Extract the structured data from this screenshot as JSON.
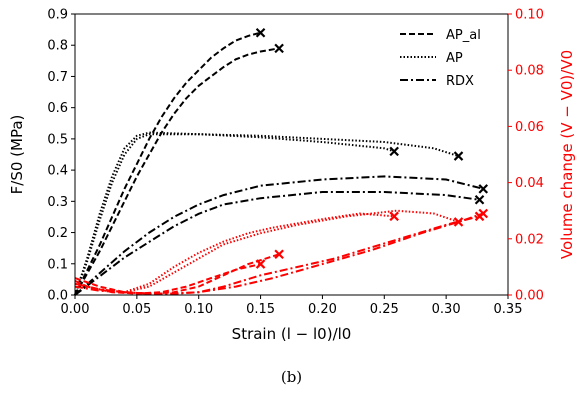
{
  "chart_data": {
    "type": "line",
    "caption": "(b)",
    "xlabel": "Strain (l − l0)/l0",
    "ylabel_left": "F/S0 (MPa)",
    "ylabel_right": "Volume change (V − V0)/V0",
    "xlim": [
      0,
      0.35
    ],
    "ylim_left": [
      0,
      0.9
    ],
    "ylim_right": [
      0,
      0.1
    ],
    "xticks": [
      "0.00",
      "0.05",
      "0.10",
      "0.15",
      "0.20",
      "0.25",
      "0.30",
      "0.35"
    ],
    "yticks_left": [
      "0.0",
      "0.1",
      "0.2",
      "0.3",
      "0.4",
      "0.5",
      "0.6",
      "0.7",
      "0.8",
      "0.9"
    ],
    "yticks_right": [
      "0.00",
      "0.02",
      "0.04",
      "0.06",
      "0.08",
      "0.10"
    ],
    "grid": false,
    "legend_position": "top-right",
    "legend": [
      {
        "label": "AP_al",
        "style": "dashed"
      },
      {
        "label": "AP",
        "style": "dotted"
      },
      {
        "label": "RDX",
        "style": "dashdot"
      }
    ],
    "colors": {
      "stress": "#000000",
      "volume": "#ff0000"
    },
    "series": [
      {
        "material": "AP_al",
        "axis": "left",
        "style": "dashed",
        "color": "#000000",
        "end_marker": "x",
        "points": [
          [
            0,
            0
          ],
          [
            0.01,
            0.08
          ],
          [
            0.02,
            0.16
          ],
          [
            0.03,
            0.25
          ],
          [
            0.04,
            0.34
          ],
          [
            0.05,
            0.42
          ],
          [
            0.06,
            0.5
          ],
          [
            0.07,
            0.57
          ],
          [
            0.08,
            0.63
          ],
          [
            0.09,
            0.68
          ],
          [
            0.1,
            0.72
          ],
          [
            0.11,
            0.76
          ],
          [
            0.12,
            0.79
          ],
          [
            0.13,
            0.815
          ],
          [
            0.14,
            0.83
          ],
          [
            0.15,
            0.84
          ]
        ]
      },
      {
        "material": "AP_al",
        "axis": "left",
        "style": "dashed",
        "color": "#000000",
        "end_marker": "x",
        "points": [
          [
            0,
            0
          ],
          [
            0.01,
            0.07
          ],
          [
            0.02,
            0.14
          ],
          [
            0.03,
            0.22
          ],
          [
            0.04,
            0.3
          ],
          [
            0.05,
            0.38
          ],
          [
            0.06,
            0.45
          ],
          [
            0.07,
            0.52
          ],
          [
            0.08,
            0.58
          ],
          [
            0.09,
            0.63
          ],
          [
            0.1,
            0.67
          ],
          [
            0.11,
            0.7
          ],
          [
            0.12,
            0.73
          ],
          [
            0.13,
            0.755
          ],
          [
            0.14,
            0.77
          ],
          [
            0.15,
            0.78
          ],
          [
            0.165,
            0.79
          ]
        ]
      },
      {
        "material": "AP",
        "axis": "left",
        "style": "dotted",
        "color": "#000000",
        "end_marker": "x",
        "points": [
          [
            0,
            0
          ],
          [
            0.01,
            0.12
          ],
          [
            0.02,
            0.26
          ],
          [
            0.03,
            0.38
          ],
          [
            0.04,
            0.47
          ],
          [
            0.05,
            0.51
          ],
          [
            0.06,
            0.52
          ],
          [
            0.1,
            0.515
          ],
          [
            0.15,
            0.505
          ],
          [
            0.2,
            0.49
          ],
          [
            0.25,
            0.47
          ],
          [
            0.258,
            0.46
          ]
        ]
      },
      {
        "material": "AP",
        "axis": "left",
        "style": "dotted",
        "color": "#000000",
        "end_marker": "x",
        "points": [
          [
            0,
            0
          ],
          [
            0.01,
            0.11
          ],
          [
            0.02,
            0.24
          ],
          [
            0.03,
            0.36
          ],
          [
            0.04,
            0.45
          ],
          [
            0.05,
            0.5
          ],
          [
            0.06,
            0.515
          ],
          [
            0.1,
            0.515
          ],
          [
            0.15,
            0.51
          ],
          [
            0.2,
            0.5
          ],
          [
            0.25,
            0.49
          ],
          [
            0.29,
            0.47
          ],
          [
            0.31,
            0.445
          ]
        ]
      },
      {
        "material": "RDX",
        "axis": "left",
        "style": "dashdot",
        "color": "#000000",
        "end_marker": "x",
        "points": [
          [
            0,
            0
          ],
          [
            0.02,
            0.07
          ],
          [
            0.04,
            0.14
          ],
          [
            0.06,
            0.2
          ],
          [
            0.08,
            0.25
          ],
          [
            0.1,
            0.29
          ],
          [
            0.12,
            0.32
          ],
          [
            0.15,
            0.35
          ],
          [
            0.2,
            0.37
          ],
          [
            0.25,
            0.38
          ],
          [
            0.3,
            0.37
          ],
          [
            0.33,
            0.34
          ]
        ]
      },
      {
        "material": "RDX",
        "axis": "left",
        "style": "dashdot",
        "color": "#000000",
        "end_marker": "x",
        "points": [
          [
            0,
            0
          ],
          [
            0.02,
            0.06
          ],
          [
            0.04,
            0.12
          ],
          [
            0.06,
            0.17
          ],
          [
            0.08,
            0.22
          ],
          [
            0.1,
            0.26
          ],
          [
            0.12,
            0.29
          ],
          [
            0.15,
            0.31
          ],
          [
            0.2,
            0.33
          ],
          [
            0.25,
            0.33
          ],
          [
            0.3,
            0.32
          ],
          [
            0.327,
            0.305
          ]
        ]
      },
      {
        "material": "AP_al",
        "axis": "right",
        "style": "dashed",
        "color": "#ff0000",
        "end_marker": "x",
        "points": [
          [
            0,
            0.005
          ],
          [
            0.01,
            0.003
          ],
          [
            0.03,
            0.001
          ],
          [
            0.05,
            0.0005
          ],
          [
            0.07,
            0.001
          ],
          [
            0.09,
            0.003
          ],
          [
            0.11,
            0.006
          ],
          [
            0.13,
            0.009
          ],
          [
            0.15,
            0.011
          ]
        ]
      },
      {
        "material": "AP_al",
        "axis": "right",
        "style": "dashed",
        "color": "#ff0000",
        "end_marker": "x",
        "points": [
          [
            0,
            0.006
          ],
          [
            0.02,
            0.003
          ],
          [
            0.04,
            0.001
          ],
          [
            0.06,
            0.0005
          ],
          [
            0.08,
            0.001
          ],
          [
            0.1,
            0.003
          ],
          [
            0.12,
            0.007
          ],
          [
            0.14,
            0.011
          ],
          [
            0.165,
            0.0145
          ]
        ]
      },
      {
        "material": "AP",
        "axis": "right",
        "style": "dotted",
        "color": "#ff0000",
        "end_marker": "x",
        "points": [
          [
            0,
            0.004
          ],
          [
            0.02,
            0.002
          ],
          [
            0.04,
            0.001
          ],
          [
            0.06,
            0.004
          ],
          [
            0.08,
            0.01
          ],
          [
            0.1,
            0.015
          ],
          [
            0.12,
            0.019
          ],
          [
            0.14,
            0.022
          ],
          [
            0.16,
            0.024
          ],
          [
            0.2,
            0.027
          ],
          [
            0.23,
            0.029
          ],
          [
            0.258,
            0.028
          ]
        ]
      },
      {
        "material": "AP",
        "axis": "right",
        "style": "dotted",
        "color": "#ff0000",
        "end_marker": "x",
        "points": [
          [
            0,
            0.004
          ],
          [
            0.02,
            0.002
          ],
          [
            0.04,
            0.001
          ],
          [
            0.06,
            0.003
          ],
          [
            0.08,
            0.008
          ],
          [
            0.1,
            0.013
          ],
          [
            0.12,
            0.018
          ],
          [
            0.15,
            0.022
          ],
          [
            0.18,
            0.025
          ],
          [
            0.22,
            0.028
          ],
          [
            0.26,
            0.03
          ],
          [
            0.29,
            0.029
          ],
          [
            0.31,
            0.026
          ]
        ]
      },
      {
        "material": "RDX",
        "axis": "right",
        "style": "dashdot",
        "color": "#ff0000",
        "end_marker": "x",
        "points": [
          [
            0,
            0.003
          ],
          [
            0.02,
            0.0015
          ],
          [
            0.04,
            0.001
          ],
          [
            0.06,
            0.0005
          ],
          [
            0.08,
            0.0005
          ],
          [
            0.1,
            0.001
          ],
          [
            0.12,
            0.003
          ],
          [
            0.15,
            0.007
          ],
          [
            0.18,
            0.01
          ],
          [
            0.21,
            0.013
          ],
          [
            0.24,
            0.017
          ],
          [
            0.27,
            0.021
          ],
          [
            0.3,
            0.025
          ],
          [
            0.327,
            0.028
          ]
        ]
      },
      {
        "material": "RDX",
        "axis": "right",
        "style": "dashdot",
        "color": "#ff0000",
        "end_marker": "x",
        "points": [
          [
            0,
            0.004
          ],
          [
            0.02,
            0.002
          ],
          [
            0.04,
            0.001
          ],
          [
            0.06,
            0.0005
          ],
          [
            0.08,
            0.0005
          ],
          [
            0.1,
            0.001
          ],
          [
            0.13,
            0.003
          ],
          [
            0.16,
            0.006
          ],
          [
            0.2,
            0.011
          ],
          [
            0.24,
            0.016
          ],
          [
            0.28,
            0.022
          ],
          [
            0.31,
            0.026
          ],
          [
            0.33,
            0.029
          ]
        ]
      }
    ]
  }
}
